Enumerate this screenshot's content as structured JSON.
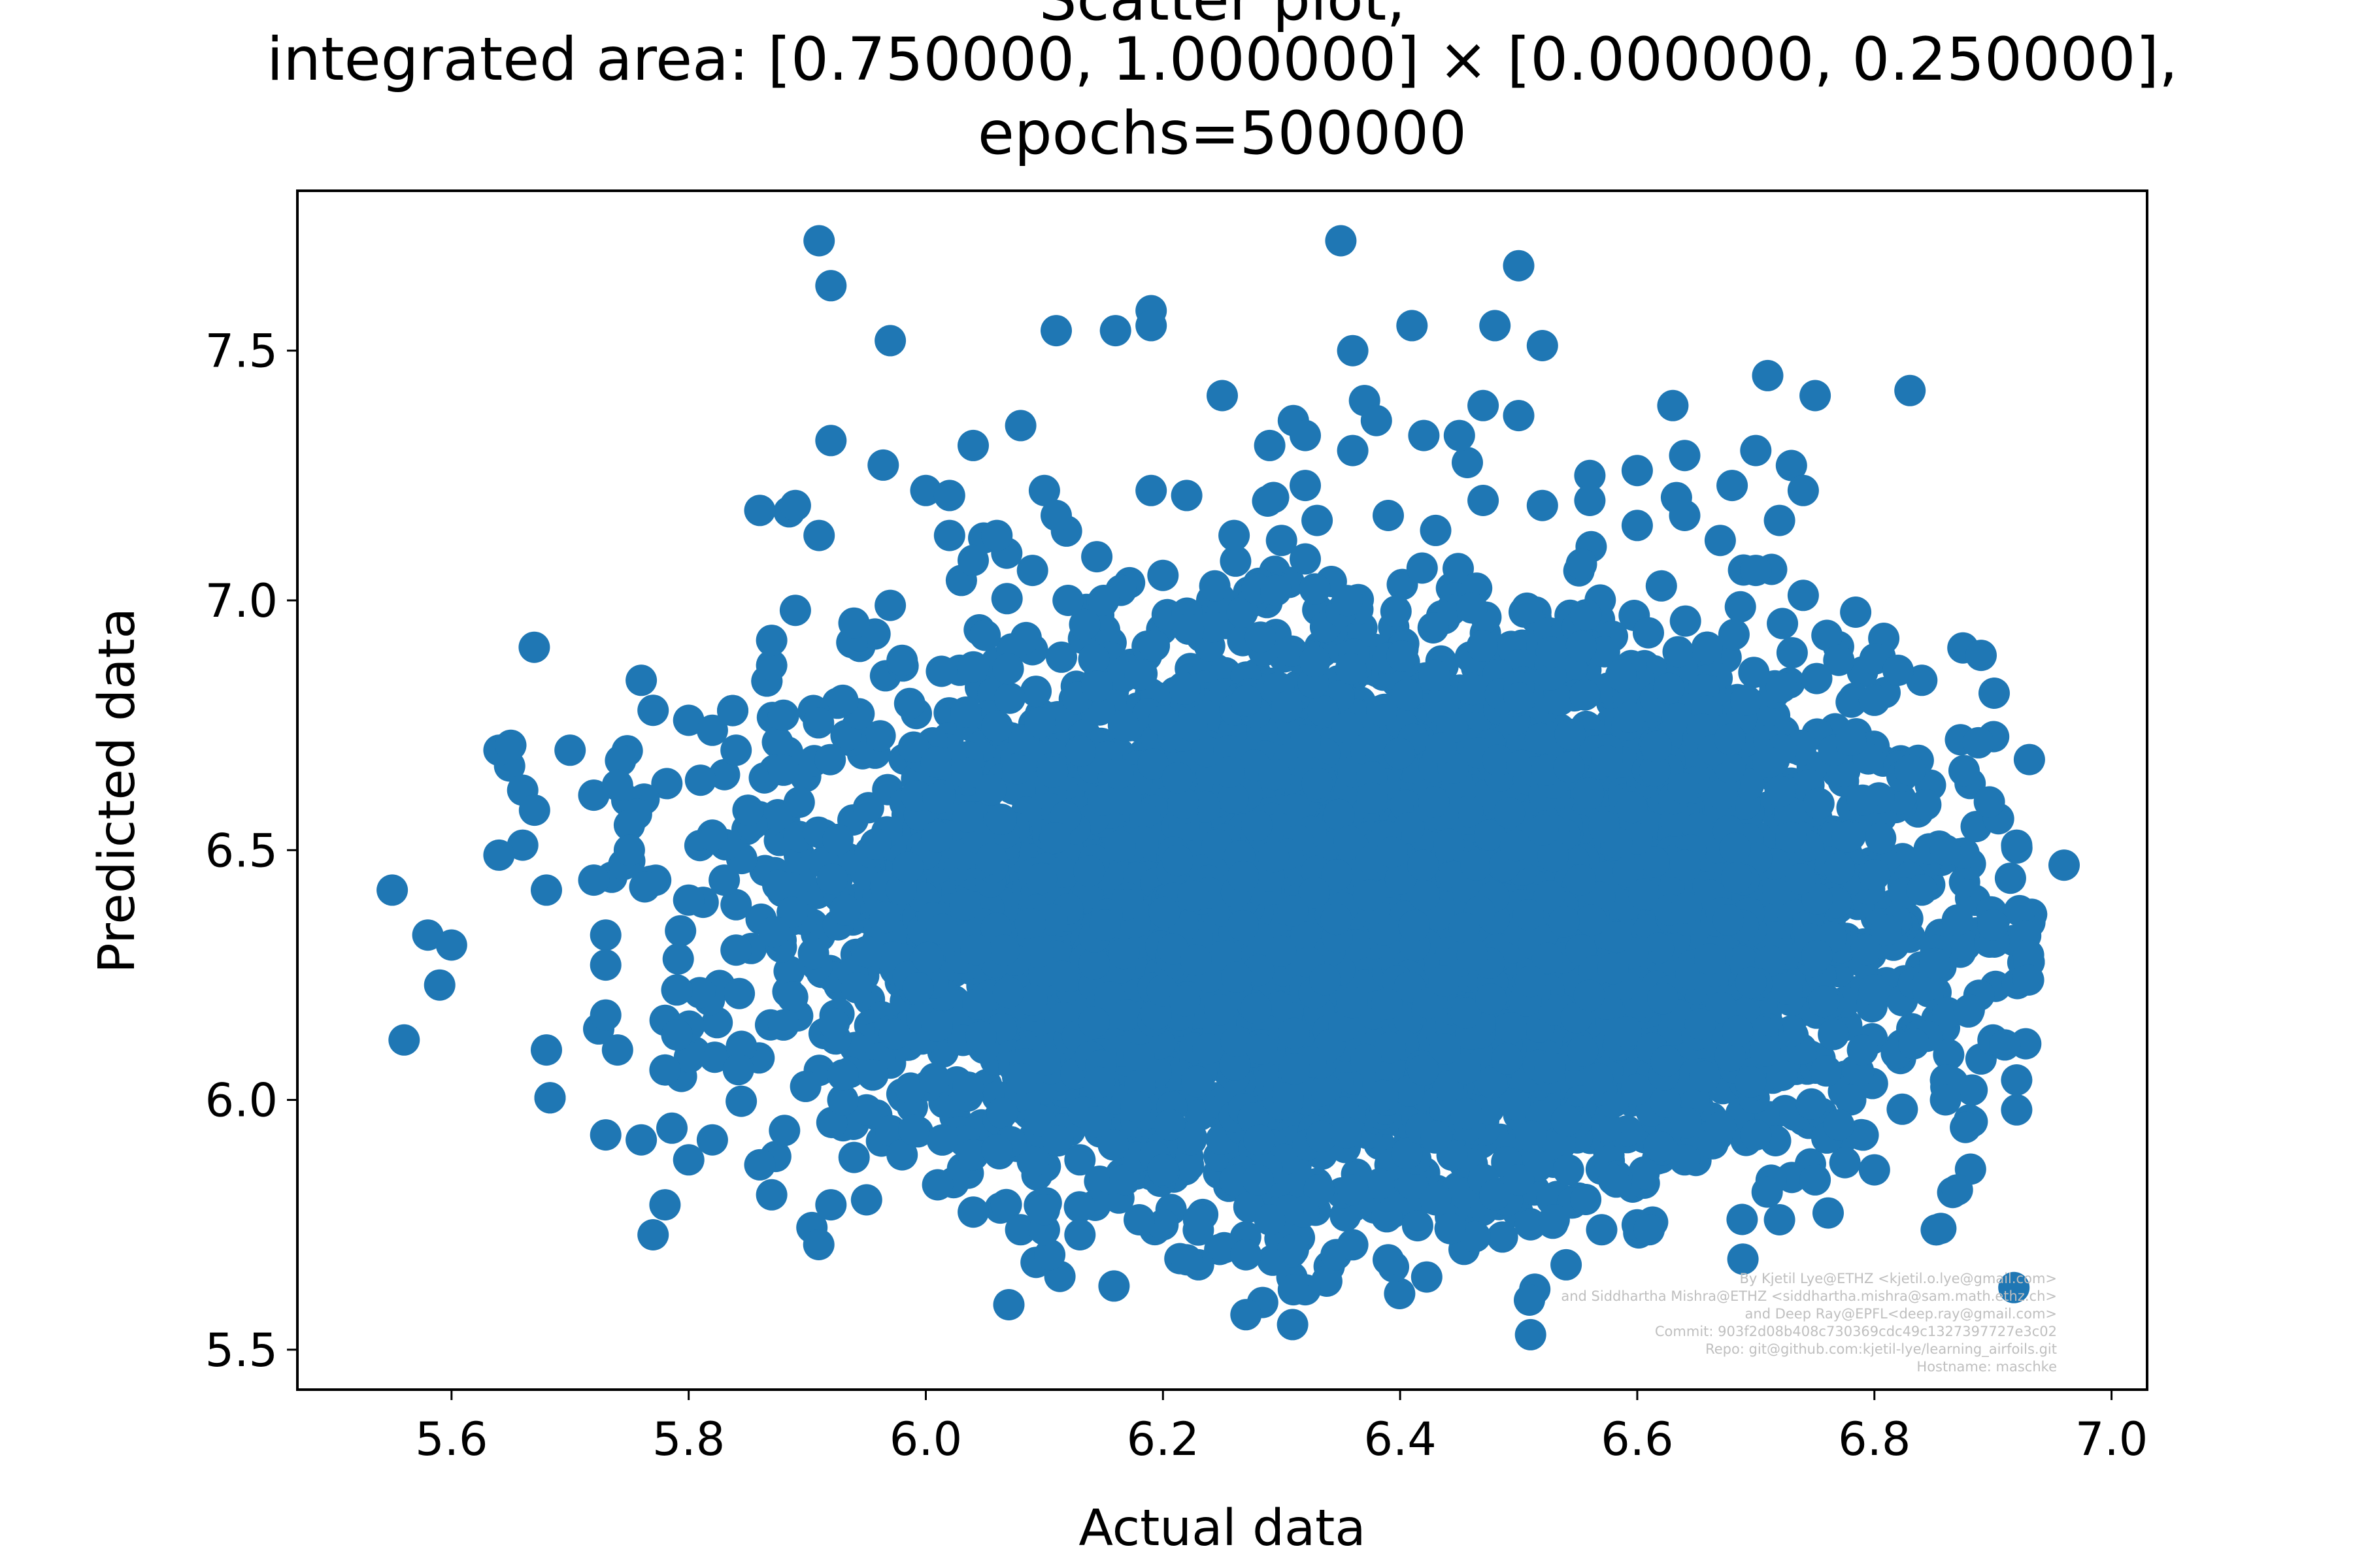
{
  "chart_data": {
    "type": "scatter",
    "title_lines": [
      "Scatter plot,",
      "integrated area: [0.750000, 1.000000] × [0.000000, 0.250000],",
      "epochs=500000"
    ],
    "xlabel": "Actual data",
    "ylabel": "Predicted data",
    "xlim": [
      5.47,
      7.03
    ],
    "ylim": [
      5.42,
      7.82
    ],
    "x_ticks": [
      5.6,
      5.8,
      6.0,
      6.2,
      6.4,
      6.6,
      6.8,
      7.0
    ],
    "x_tick_labels": [
      "5.6",
      "5.8",
      "6.0",
      "6.2",
      "6.4",
      "6.6",
      "6.8",
      "7.0"
    ],
    "y_ticks": [
      5.5,
      6.0,
      6.5,
      7.0,
      7.5
    ],
    "y_tick_labels": [
      "5.5",
      "6.0",
      "6.5",
      "7.0",
      "7.5"
    ],
    "marker_color": "#1f77b4",
    "grid": false,
    "cluster": {
      "description_free": true,
      "x_mean": 6.38,
      "x_std": 0.21,
      "y_mean": 6.38,
      "y_std": 0.25,
      "n_points": 7000
    },
    "points": [
      [
        5.55,
        6.42
      ],
      [
        5.56,
        6.12
      ],
      [
        5.58,
        6.33
      ],
      [
        5.6,
        6.31
      ],
      [
        5.59,
        6.23
      ],
      [
        5.64,
        6.7
      ],
      [
        5.65,
        6.71
      ],
      [
        5.66,
        6.62
      ],
      [
        5.67,
        6.58
      ],
      [
        5.66,
        6.51
      ],
      [
        5.64,
        6.49
      ],
      [
        5.68,
        6.42
      ],
      [
        5.68,
        6.1
      ],
      [
        5.7,
        6.7
      ],
      [
        5.72,
        6.61
      ],
      [
        5.72,
        6.44
      ],
      [
        5.73,
        6.33
      ],
      [
        5.73,
        6.27
      ],
      [
        5.73,
        6.17
      ],
      [
        5.74,
        6.1
      ],
      [
        5.73,
        5.93
      ],
      [
        5.74,
        6.63
      ],
      [
        5.75,
        6.55
      ],
      [
        5.75,
        6.5
      ],
      [
        5.76,
        5.92
      ],
      [
        5.77,
        5.73
      ],
      [
        5.78,
        5.79
      ],
      [
        5.8,
        5.88
      ],
      [
        5.82,
        5.92
      ],
      [
        5.86,
        5.87
      ],
      [
        5.87,
        5.81
      ],
      [
        5.76,
        6.84
      ],
      [
        5.77,
        6.78
      ],
      [
        5.8,
        6.76
      ],
      [
        5.82,
        6.74
      ],
      [
        5.87,
        6.87
      ],
      [
        5.87,
        6.92
      ],
      [
        5.89,
        6.98
      ],
      [
        5.88,
        6.77
      ],
      [
        5.91,
        7.72
      ],
      [
        5.92,
        7.63
      ],
      [
        5.92,
        7.32
      ],
      [
        5.86,
        7.18
      ],
      [
        5.89,
        7.19
      ],
      [
        5.91,
        7.13
      ],
      [
        5.92,
        5.79
      ],
      [
        5.95,
        5.8
      ],
      [
        5.98,
        5.89
      ],
      [
        6.01,
        5.83
      ],
      [
        5.97,
        7.52
      ],
      [
        6.0,
        7.22
      ],
      [
        6.02,
        7.21
      ],
      [
        6.02,
        7.13
      ],
      [
        6.04,
        7.31
      ],
      [
        6.06,
        7.13
      ],
      [
        6.08,
        7.35
      ],
      [
        6.1,
        7.22
      ],
      [
        6.11,
        7.17
      ],
      [
        6.11,
        7.54
      ],
      [
        6.16,
        7.54
      ],
      [
        6.19,
        7.58
      ],
      [
        6.19,
        7.55
      ],
      [
        6.19,
        7.22
      ],
      [
        6.22,
        7.21
      ],
      [
        6.25,
        7.41
      ],
      [
        6.29,
        7.31
      ],
      [
        6.31,
        7.36
      ],
      [
        6.32,
        7.33
      ],
      [
        6.32,
        7.23
      ],
      [
        6.35,
        7.72
      ],
      [
        6.36,
        7.5
      ],
      [
        6.37,
        7.4
      ],
      [
        6.38,
        7.36
      ],
      [
        6.36,
        7.3
      ],
      [
        6.41,
        7.55
      ],
      [
        6.42,
        7.33
      ],
      [
        6.45,
        7.33
      ],
      [
        6.47,
        7.39
      ],
      [
        6.48,
        7.55
      ],
      [
        6.5,
        7.67
      ],
      [
        6.5,
        7.37
      ],
      [
        6.52,
        7.51
      ],
      [
        6.56,
        7.25
      ],
      [
        6.6,
        7.26
      ],
      [
        6.63,
        7.39
      ],
      [
        6.64,
        7.29
      ],
      [
        6.68,
        7.23
      ],
      [
        6.7,
        7.3
      ],
      [
        6.71,
        7.45
      ],
      [
        6.75,
        7.41
      ],
      [
        6.73,
        7.27
      ],
      [
        6.74,
        7.22
      ],
      [
        6.72,
        7.16
      ],
      [
        6.83,
        7.42
      ],
      [
        6.89,
        6.89
      ],
      [
        6.84,
        6.84
      ],
      [
        6.82,
        6.86
      ],
      [
        6.8,
        6.8
      ],
      [
        6.83,
        6.66
      ],
      [
        6.86,
        6.5
      ],
      [
        6.92,
        6.51
      ],
      [
        6.96,
        6.47
      ],
      [
        6.84,
        6.42
      ],
      [
        6.87,
        6.36
      ],
      [
        6.9,
        6.35
      ],
      [
        6.93,
        6.29
      ],
      [
        6.93,
        6.24
      ],
      [
        6.88,
        6.18
      ],
      [
        6.9,
        6.12
      ],
      [
        6.91,
        6.11
      ],
      [
        6.86,
        6.04
      ],
      [
        6.86,
        6.0
      ],
      [
        6.92,
        6.04
      ],
      [
        6.92,
        5.98
      ],
      [
        6.87,
        5.82
      ],
      [
        6.8,
        5.86
      ],
      [
        6.75,
        5.84
      ],
      [
        6.72,
        5.76
      ],
      [
        6.6,
        5.75
      ],
      [
        6.61,
        5.74
      ],
      [
        6.57,
        5.74
      ],
      [
        6.54,
        5.67
      ],
      [
        6.51,
        5.75
      ],
      [
        6.53,
        5.76
      ],
      [
        6.51,
        5.53
      ],
      [
        6.48,
        5.81
      ],
      [
        6.39,
        5.68
      ],
      [
        6.36,
        5.71
      ],
      [
        6.32,
        5.62
      ],
      [
        6.31,
        5.62
      ],
      [
        6.31,
        5.7
      ],
      [
        6.29,
        5.76
      ],
      [
        6.27,
        5.57
      ],
      [
        6.27,
        5.69
      ],
      [
        6.23,
        5.67
      ],
      [
        6.22,
        5.68
      ],
      [
        6.2,
        5.75
      ],
      [
        6.23,
        5.76
      ],
      [
        6.18,
        5.76
      ],
      [
        6.13,
        5.73
      ],
      [
        6.07,
        5.59
      ],
      [
        6.08,
        5.74
      ],
      [
        6.1,
        5.74
      ],
      [
        6.1,
        5.78
      ],
      [
        6.04,
        5.89
      ],
      [
        5.95,
        5.98
      ],
      [
        5.93,
        6.0
      ],
      [
        5.97,
        6.99
      ],
      [
        6.03,
        7.04
      ],
      [
        6.04,
        7.08
      ],
      [
        6.09,
        7.06
      ],
      [
        6.12,
        7.0
      ],
      [
        6.15,
        7.0
      ],
      [
        6.2,
        7.05
      ],
      [
        6.26,
        7.13
      ],
      [
        6.3,
        7.12
      ],
      [
        6.33,
        7.16
      ],
      [
        6.39,
        7.17
      ],
      [
        6.43,
        7.14
      ],
      [
        6.47,
        7.2
      ],
      [
        6.52,
        7.19
      ],
      [
        6.56,
        7.2
      ],
      [
        6.6,
        7.15
      ],
      [
        6.64,
        7.17
      ],
      [
        6.67,
        7.12
      ],
      [
        6.7,
        7.06
      ],
      [
        6.74,
        7.01
      ],
      [
        6.76,
        6.93
      ],
      [
        6.77,
        6.88
      ],
      [
        6.78,
        6.72
      ],
      [
        6.79,
        6.6
      ],
      [
        6.8,
        6.45
      ],
      [
        6.81,
        6.34
      ],
      [
        6.8,
        6.22
      ],
      [
        6.79,
        6.1
      ],
      [
        6.78,
        6.0
      ],
      [
        6.77,
        5.95
      ],
      [
        6.7,
        5.93
      ],
      [
        6.64,
        5.88
      ],
      [
        6.58,
        5.84
      ],
      [
        6.5,
        5.84
      ],
      [
        6.43,
        5.8
      ],
      [
        6.36,
        5.82
      ],
      [
        6.28,
        5.84
      ],
      [
        6.2,
        5.86
      ],
      [
        6.13,
        5.88
      ],
      [
        6.06,
        5.9
      ],
      [
        5.99,
        5.94
      ],
      [
        5.93,
        6.05
      ],
      [
        5.88,
        6.15
      ],
      [
        5.84,
        6.3
      ],
      [
        5.83,
        6.44
      ],
      [
        5.85,
        6.58
      ],
      [
        5.88,
        6.66
      ],
      [
        5.93,
        6.8
      ],
      [
        5.98,
        6.88
      ],
      [
        6.05,
        6.93
      ],
      [
        5.81,
        6.64
      ],
      [
        5.8,
        6.4
      ],
      [
        5.79,
        6.22
      ],
      [
        5.78,
        6.06
      ],
      [
        5.79,
        6.13
      ],
      [
        5.82,
        6.53
      ],
      [
        5.84,
        6.7
      ]
    ],
    "watermark_lines": [
      "By Kjetil Lye@ETHZ <kjetil.o.lye@gmail.com>",
      "and Siddhartha Mishra@ETHZ <siddhartha.mishra@sam.math.ethz.ch>",
      "and Deep Ray@EPFL<deep.ray@gmail.com>",
      "Commit: 903f2d08b408c730369cdc49c1327397727e3c02",
      "Repo: git@github.com:kjetil-lye/learning_airfoils.git",
      "Hostname: maschke"
    ]
  }
}
